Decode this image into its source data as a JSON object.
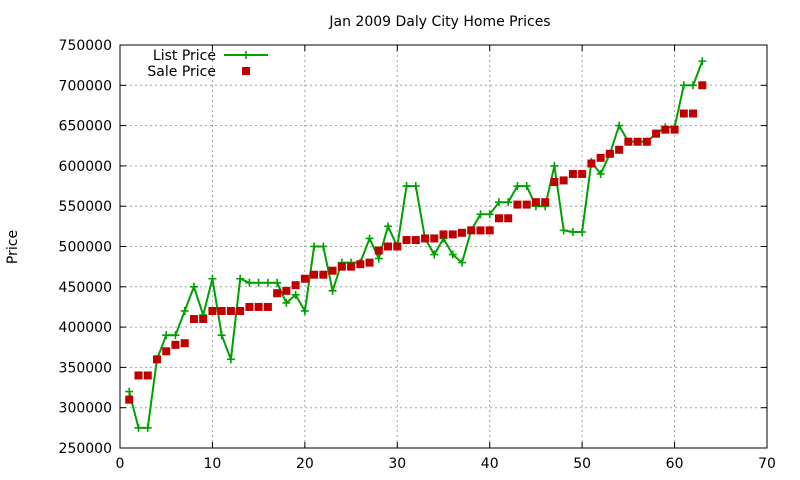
{
  "chart_data": {
    "type": "line",
    "title": "Jan 2009 Daly City Home Prices",
    "ylabel": "Price",
    "xlim": [
      0,
      70
    ],
    "ylim": [
      250000,
      750000
    ],
    "xticks": [
      0,
      10,
      20,
      30,
      40,
      50,
      60,
      70
    ],
    "yticks": [
      250000,
      300000,
      350000,
      400000,
      450000,
      500000,
      550000,
      600000,
      650000,
      700000,
      750000
    ],
    "grid": true,
    "legend_position": "top-left",
    "series": [
      {
        "name": "List Price",
        "style": "linespoints",
        "color": "#00a000",
        "x": [
          1,
          2,
          3,
          4,
          5,
          6,
          7,
          8,
          9,
          10,
          11,
          12,
          13,
          14,
          15,
          16,
          17,
          18,
          19,
          20,
          21,
          22,
          23,
          24,
          25,
          26,
          27,
          28,
          29,
          30,
          31,
          32,
          33,
          34,
          35,
          36,
          37,
          38,
          39,
          40,
          41,
          42,
          43,
          44,
          45,
          46,
          47,
          48,
          49,
          50,
          51,
          52,
          53,
          54,
          55,
          56,
          57,
          58,
          59,
          60,
          61,
          62,
          63
        ],
        "y": [
          320000,
          275000,
          275000,
          360000,
          390000,
          390000,
          420000,
          450000,
          415000,
          460000,
          390000,
          360000,
          460000,
          455000,
          455000,
          455000,
          455000,
          430000,
          440000,
          420000,
          500000,
          500000,
          445000,
          480000,
          480000,
          480000,
          510000,
          485000,
          525000,
          500000,
          575000,
          575000,
          510000,
          490000,
          510000,
          490000,
          480000,
          520000,
          540000,
          540000,
          555000,
          555000,
          575000,
          575000,
          550000,
          550000,
          600000,
          520000,
          518000,
          518000,
          605000,
          590000,
          615000,
          650000,
          630000,
          630000,
          630000,
          640000,
          648000,
          648000,
          700000,
          700000,
          730000
        ]
      },
      {
        "name": "Sale Price",
        "style": "points",
        "color": "#c00000",
        "x": [
          1,
          2,
          3,
          4,
          5,
          6,
          7,
          8,
          9,
          10,
          11,
          12,
          13,
          14,
          15,
          16,
          17,
          18,
          19,
          20,
          21,
          22,
          23,
          24,
          25,
          26,
          27,
          28,
          29,
          30,
          31,
          32,
          33,
          34,
          35,
          36,
          37,
          38,
          39,
          40,
          41,
          42,
          43,
          44,
          45,
          46,
          47,
          48,
          49,
          50,
          51,
          52,
          53,
          54,
          55,
          56,
          57,
          58,
          59,
          60,
          61,
          62,
          63
        ],
        "y": [
          310000,
          340000,
          340000,
          360000,
          370000,
          378000,
          380000,
          410000,
          410000,
          420000,
          420000,
          420000,
          420000,
          425000,
          425000,
          425000,
          442000,
          445000,
          452000,
          460000,
          465000,
          465000,
          470000,
          475000,
          475000,
          478000,
          480000,
          495000,
          500000,
          500000,
          508000,
          508000,
          510000,
          510000,
          515000,
          515000,
          517000,
          520000,
          520000,
          520000,
          535000,
          535000,
          552000,
          552000,
          555000,
          555000,
          580000,
          582000,
          590000,
          590000,
          603000,
          610000,
          615000,
          620000,
          630000,
          630000,
          630000,
          640000,
          645000,
          645000,
          665000,
          665000,
          700000
        ]
      }
    ]
  }
}
